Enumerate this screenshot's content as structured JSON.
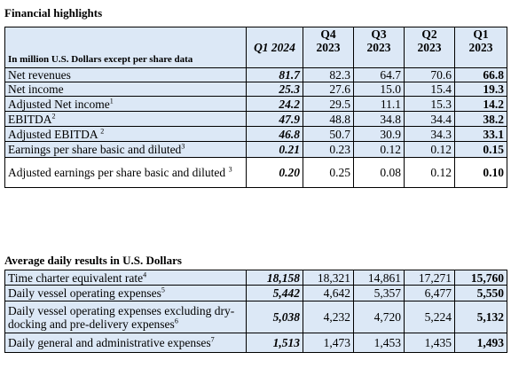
{
  "table1": {
    "title": "Financial highlights",
    "unit_note": "In million U.S. Dollars except per share data",
    "columns": [
      {
        "line1": "Q1 2024",
        "line2": ""
      },
      {
        "line1": "Q4",
        "line2": "2023"
      },
      {
        "line1": "Q3",
        "line2": "2023"
      },
      {
        "line1": "Q2",
        "line2": "2023"
      },
      {
        "line1": "Q1",
        "line2": "2023"
      }
    ],
    "rows": [
      {
        "label": "Net revenues",
        "sup": "",
        "values": [
          "81.7",
          "82.3",
          "64.7",
          "70.6",
          "66.8"
        ]
      },
      {
        "label": "Net income",
        "sup": "",
        "values": [
          "25.3",
          "27.6",
          "15.0",
          "15.4",
          "19.3"
        ]
      },
      {
        "label": "Adjusted Net income",
        "sup": "1",
        "values": [
          "24.2",
          "29.5",
          "11.1",
          "15.3",
          "14.2"
        ]
      },
      {
        "label": "EBITDA",
        "sup": "2",
        "values": [
          "47.9",
          "48.8",
          "34.8",
          "34.4",
          "38.2"
        ]
      },
      {
        "label": "Adjusted EBITDA ",
        "sup": "2",
        "values": [
          "46.8",
          "50.7",
          "30.9",
          "34.3",
          "33.1"
        ]
      },
      {
        "label": "Earnings per share basic and diluted",
        "sup": "3",
        "values": [
          "0.21",
          "0.23",
          "0.12",
          "0.12",
          "0.15"
        ]
      },
      {
        "label": "Adjusted earnings per share basic and diluted ",
        "sup": "3",
        "values": [
          "0.20",
          "0.25",
          "0.08",
          "0.12",
          "0.10"
        ]
      }
    ]
  },
  "table2": {
    "title": "Average daily results in U.S. Dollars",
    "rows": [
      {
        "label": "Time charter equivalent rate",
        "sup": "4",
        "values": [
          "18,158",
          "18,321",
          "14,861",
          "17,271",
          "15,760"
        ]
      },
      {
        "label": "Daily vessel operating expenses",
        "sup": "5",
        "values": [
          "5,442",
          "4,642",
          "5,357",
          "6,477",
          "5,550"
        ]
      },
      {
        "label": "Daily vessel operating expenses excluding dry-docking and pre-delivery expenses",
        "sup": "6",
        "values": [
          "5,038",
          "4,232",
          "4,720",
          "5,224",
          "5,132"
        ]
      },
      {
        "label": "Daily general and administrative expenses",
        "sup": "7",
        "values": [
          "1,513",
          "1,473",
          "1,453",
          "1,435",
          "1,493"
        ]
      }
    ]
  },
  "colors": {
    "highlight": "#dce8f6",
    "border": "#000000"
  }
}
